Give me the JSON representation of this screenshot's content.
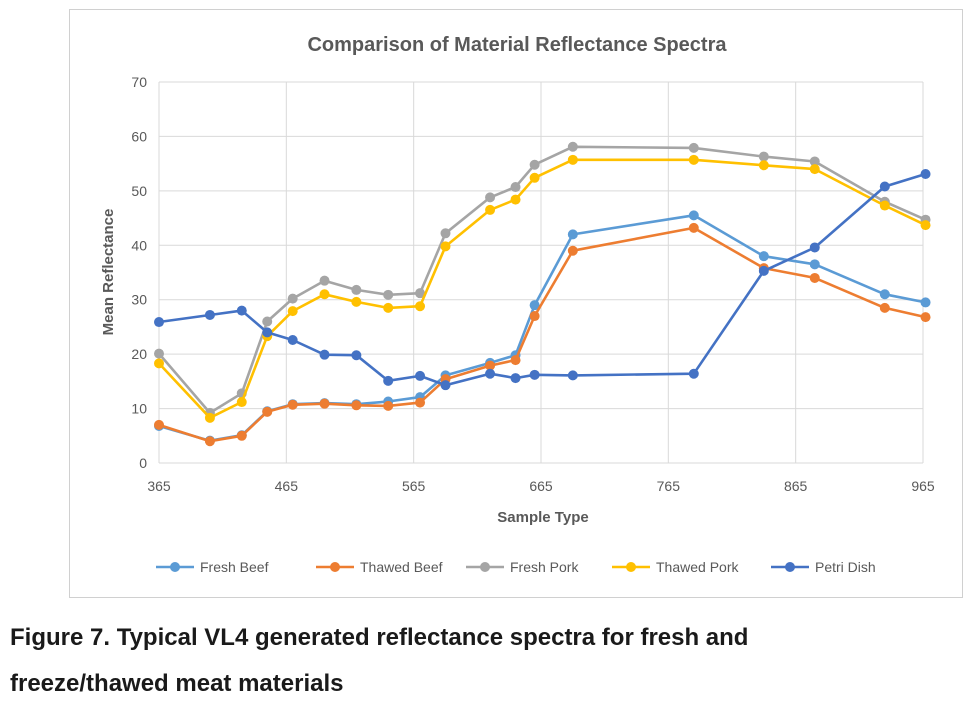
{
  "caption": {
    "line1": "Figure 7. Typical VL4 generated reflectance spectra for fresh and",
    "line2": "freeze/thawed meat materials"
  },
  "chart_data": {
    "type": "line",
    "title": "Comparison of Material Reflectance Spectra",
    "xlabel": "Sample Type",
    "ylabel": "Mean Reflectance",
    "xlim": [
      365,
      965
    ],
    "ylim": [
      0,
      70
    ],
    "xticks": [
      "365",
      "465",
      "565",
      "665",
      "765",
      "865",
      "965"
    ],
    "yticks": [
      "0",
      "10",
      "20",
      "30",
      "40",
      "50",
      "60",
      "70"
    ],
    "grid": true,
    "legend_position": "bottom",
    "x": [
      365,
      405,
      430,
      450,
      470,
      495,
      520,
      545,
      570,
      590,
      625,
      645,
      660,
      690,
      785,
      840,
      880,
      935,
      967
    ],
    "series": [
      {
        "name": "Fresh Beef",
        "color": "#5b9bd5",
        "values": [
          6.8,
          4.1,
          5.1,
          9.5,
          10.8,
          11.0,
          10.8,
          11.3,
          12.1,
          16.1,
          18.4,
          19.8,
          29.0,
          42.0,
          45.5,
          38.0,
          36.5,
          31.0,
          29.5
        ]
      },
      {
        "name": "Thawed Beef",
        "color": "#ed7d31",
        "values": [
          7.0,
          4.0,
          5.0,
          9.4,
          10.7,
          10.9,
          10.6,
          10.5,
          11.1,
          15.4,
          17.9,
          18.9,
          27.0,
          39.0,
          43.2,
          35.8,
          34.0,
          28.5,
          26.8
        ]
      },
      {
        "name": "Fresh Pork",
        "color": "#a5a5a5",
        "values": [
          20.1,
          9.2,
          12.8,
          26.0,
          30.2,
          33.5,
          31.8,
          30.9,
          31.2,
          42.2,
          48.8,
          50.7,
          54.8,
          58.1,
          57.9,
          56.3,
          55.4,
          48.0,
          44.7
        ]
      },
      {
        "name": "Thawed Pork",
        "color": "#ffc000",
        "values": [
          18.3,
          8.3,
          11.2,
          23.3,
          27.9,
          31.0,
          29.6,
          28.5,
          28.8,
          39.8,
          46.5,
          48.4,
          52.4,
          55.7,
          55.7,
          54.7,
          54.0,
          47.3,
          43.7
        ]
      },
      {
        "name": "Petri Dish",
        "color": "#4472c4",
        "values": [
          25.9,
          27.2,
          28.0,
          24.0,
          22.6,
          19.9,
          19.8,
          15.1,
          16.0,
          14.3,
          16.4,
          15.6,
          16.2,
          16.1,
          16.4,
          35.3,
          39.6,
          50.8,
          53.1
        ]
      }
    ]
  }
}
